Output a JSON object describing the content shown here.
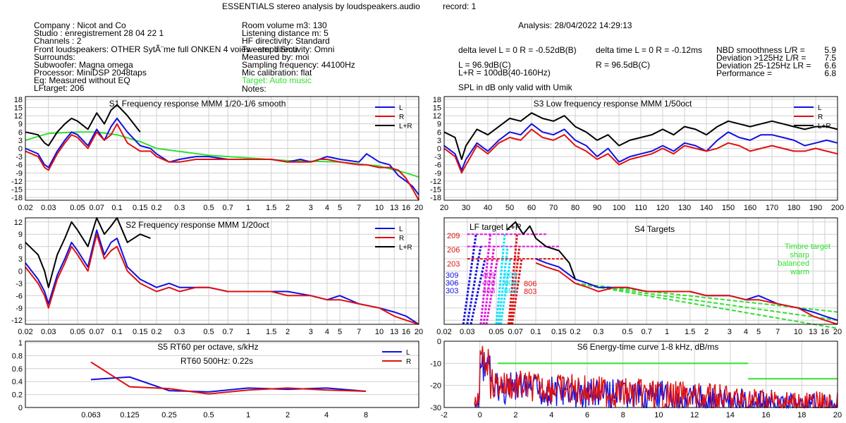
{
  "header": {
    "title": "ESSENTIALS stereo analysis by loudspeakers.audio",
    "record": "record: 1",
    "analysis": "Analysis: 28/04/2022 14:29:13"
  },
  "info_left": [
    "Company : Nicot and Co",
    "Studio : enregistrement 28 04 22 1",
    "Channels : 2",
    "Front loudspeakers: OTHER SytÃ¨me full ONKEN 4 voies - ampli Smu",
    "Surrounds:",
    "Subwoofer: Magna omega",
    "Processor: MiniDSP 2048taps",
    "Eq: Measured without EQ",
    "LFtarget: 206"
  ],
  "info_mid": [
    "Room volume m3: 130",
    "Listening distance m: 5",
    "HF directivity: Standard",
    "Tweeter directivity: Omni",
    "Measured by: moi",
    "Sampling frequency: 44100Hz",
    "Mic calibration: flat"
  ],
  "info_mid_target": "Target: Auto music",
  "info_mid_notes": "Notes:",
  "levels": {
    "delta_level": "delta level L = 0  R = -0.52dB(B)",
    "delta_time": "delta time  L = 0  R = -0.12ms",
    "l_spl": "L =     96.9dB(C)",
    "r_spl": "R =     96.5dB(C)",
    "lr_spl": "L+R = 100dB(40-160Hz)",
    "spl_note": "SPL in dB only valid with Umik"
  },
  "metrics": [
    {
      "label": "NBD smoothness L/R =",
      "value": "5.9"
    },
    {
      "label": "Deviation >125Hz L/R =",
      "value": "7.5"
    },
    {
      "label": "Deviation 25-125Hz LR =",
      "value": "6.6"
    },
    {
      "label": "Performance =",
      "value": "6.8"
    }
  ],
  "colors": {
    "L": "#1010e0",
    "R": "#e01010",
    "LR": "#000000",
    "target": "#30e030",
    "grid": "#d0d0d0"
  },
  "chart_data": [
    {
      "id": "S1",
      "type": "line",
      "title": "S1  Frequency response MMM 1/20-1/6 smooth",
      "x_scale": "log",
      "xlim": [
        0.02,
        20
      ],
      "ylim": [
        -19,
        19
      ],
      "x_ticks": [
        "0.02",
        "0.03",
        "0.05",
        "0.07",
        "0.1",
        "0.15",
        "0.2",
        "0.3",
        "0.5",
        "0.7",
        "1",
        "1.5",
        "2",
        "3",
        "4",
        "5",
        "7",
        "10",
        "13",
        "16",
        "20"
      ],
      "y_ticks": [
        "18",
        "15",
        "12",
        "9",
        "6",
        "3",
        "0",
        "-3",
        "-6",
        "-9",
        "-12",
        "-15",
        "-18"
      ],
      "legend": [
        "L",
        "R",
        "L+R"
      ],
      "series": [
        {
          "name": "target",
          "x": [
            0.02,
            0.03,
            0.05,
            0.07,
            0.1,
            0.15,
            0.2,
            0.5,
            1,
            2,
            5,
            10,
            16,
            20
          ],
          "y": [
            3,
            5.5,
            6,
            6,
            5,
            2.5,
            0,
            -2.5,
            -3.5,
            -4.5,
            -5,
            -6.5,
            -9,
            -10.5
          ]
        },
        {
          "name": "L",
          "x": [
            0.02,
            0.025,
            0.028,
            0.03,
            0.035,
            0.04,
            0.045,
            0.05,
            0.06,
            0.07,
            0.08,
            0.09,
            0.1,
            0.12,
            0.15,
            0.18,
            0.2,
            0.25,
            0.3,
            0.4,
            0.5,
            0.7,
            1,
            1.5,
            2,
            2.5,
            3,
            3.5,
            4,
            5,
            7,
            8,
            10,
            12,
            14,
            16,
            18,
            20
          ],
          "y": [
            0,
            -2,
            -6,
            -7,
            -1,
            3,
            6,
            5,
            1,
            7,
            3,
            8,
            11,
            6,
            1,
            0,
            -2,
            -5,
            -4,
            -3,
            -3,
            -4,
            -4,
            -4,
            -5,
            -4,
            -5,
            -4,
            -3,
            -4,
            -5,
            -2,
            -5,
            -6,
            -10,
            -12,
            -14,
            -17
          ]
        },
        {
          "name": "R",
          "x": [
            0.02,
            0.025,
            0.028,
            0.03,
            0.035,
            0.04,
            0.045,
            0.05,
            0.06,
            0.07,
            0.08,
            0.09,
            0.1,
            0.12,
            0.15,
            0.18,
            0.2,
            0.25,
            0.3,
            0.4,
            0.5,
            0.7,
            1,
            1.5,
            2,
            2.5,
            3,
            3.5,
            4,
            5,
            7,
            8,
            10,
            12,
            14,
            16,
            18,
            20
          ],
          "y": [
            -1,
            -3,
            -7,
            -8,
            -2,
            2,
            5,
            4,
            0,
            6,
            3,
            5,
            9,
            2,
            -1,
            -1,
            -3,
            -5,
            -5,
            -4,
            -4,
            -4,
            -4,
            -4,
            -5,
            -5,
            -5,
            -4,
            -4,
            -5,
            -6,
            -6,
            -7,
            -7,
            -8,
            -11,
            -15,
            -19
          ]
        },
        {
          "name": "L+R",
          "x": [
            0.02,
            0.025,
            0.028,
            0.03,
            0.035,
            0.04,
            0.045,
            0.05,
            0.06,
            0.07,
            0.08,
            0.09,
            0.1,
            0.12,
            0.15
          ],
          "y": [
            6,
            5,
            2,
            1,
            6,
            9,
            11,
            10,
            7,
            13,
            9,
            14,
            16,
            12,
            6
          ]
        }
      ]
    },
    {
      "id": "S3",
      "type": "line",
      "title": "S3  Low frequency response MMM 1/50oct",
      "x_scale": "linear",
      "xlim": [
        20,
        200
      ],
      "ylim": [
        -19,
        19
      ],
      "x_ticks": [
        "20",
        "30",
        "40",
        "50",
        "60",
        "70",
        "80",
        "90",
        "100",
        "110",
        "120",
        "130",
        "140",
        "150",
        "160",
        "170",
        "180",
        "190",
        "200"
      ],
      "y_ticks": [
        "18",
        "15",
        "12",
        "9",
        "6",
        "3",
        "0",
        "-3",
        "-6",
        "-9",
        "-12",
        "-15",
        "-18"
      ],
      "legend": [
        "L",
        "R",
        "L+R"
      ],
      "series": [
        {
          "name": "L",
          "x": [
            20,
            25,
            28,
            30,
            35,
            40,
            45,
            50,
            55,
            60,
            65,
            70,
            75,
            80,
            85,
            90,
            95,
            100,
            105,
            110,
            115,
            120,
            125,
            130,
            135,
            140,
            145,
            150,
            155,
            160,
            165,
            170,
            175,
            180,
            185,
            190,
            195,
            200
          ],
          "y": [
            1,
            -2,
            -8,
            -4,
            2,
            -1,
            3,
            6,
            5,
            9,
            6,
            5,
            7,
            3,
            1,
            -3,
            0,
            -5,
            -3,
            -2,
            -1,
            1,
            -1,
            2,
            1,
            -1,
            3,
            6,
            4,
            3,
            5,
            5,
            4,
            3,
            1,
            2,
            3,
            2
          ]
        },
        {
          "name": "R",
          "x": [
            20,
            25,
            28,
            30,
            35,
            40,
            45,
            50,
            55,
            60,
            65,
            70,
            75,
            80,
            85,
            90,
            95,
            100,
            105,
            110,
            115,
            120,
            125,
            130,
            135,
            140,
            145,
            150,
            155,
            160,
            165,
            170,
            175,
            180,
            185,
            190,
            195,
            200
          ],
          "y": [
            0,
            -3,
            -9,
            -6,
            1,
            -2,
            2,
            4,
            3,
            7,
            4,
            3,
            5,
            1,
            -1,
            -4,
            -2,
            -6,
            -4,
            -3,
            -2,
            0,
            -2,
            1,
            0,
            -1,
            0,
            2,
            1,
            -1,
            0,
            1,
            0,
            -1,
            -1,
            0,
            -1,
            -2
          ]
        },
        {
          "name": "L+R",
          "x": [
            20,
            25,
            28,
            30,
            35,
            40,
            45,
            50,
            55,
            60,
            65,
            70,
            75,
            80,
            85,
            90,
            95,
            100,
            105,
            110,
            115,
            120,
            125,
            130,
            135,
            140,
            145,
            150,
            155,
            160,
            165,
            170,
            175,
            180,
            185,
            190,
            195,
            200
          ],
          "y": [
            6,
            4,
            -4,
            1,
            7,
            5,
            8,
            11,
            10,
            13,
            11,
            10,
            12,
            8,
            6,
            3,
            5,
            1,
            3,
            4,
            5,
            7,
            5,
            8,
            7,
            5,
            8,
            10,
            9,
            8,
            9,
            10,
            9,
            8,
            7,
            8,
            8,
            7
          ]
        }
      ]
    },
    {
      "id": "S2",
      "type": "line",
      "title": "S2  Frequency response MMM 1/20oct",
      "x_scale": "log",
      "xlim": [
        0.02,
        20
      ],
      "ylim": [
        -13,
        13
      ],
      "x_ticks": [
        "0.02",
        "0.03",
        "0.05",
        "0.07",
        "0.1",
        "0.15",
        "0.2",
        "0.3",
        "0.5",
        "0.7",
        "1",
        "1.5",
        "2",
        "3",
        "4",
        "5",
        "7",
        "10",
        "13",
        "16",
        "20"
      ],
      "y_ticks": [
        "12",
        "9",
        "6",
        "3",
        "0",
        "-3",
        "-6",
        "-9",
        "-12"
      ],
      "legend": [
        "L",
        "R",
        "L+R"
      ],
      "series": [
        {
          "name": "L",
          "x": [
            0.02,
            0.025,
            0.028,
            0.03,
            0.035,
            0.04,
            0.045,
            0.05,
            0.06,
            0.07,
            0.08,
            0.09,
            0.1,
            0.12,
            0.15,
            0.2,
            0.25,
            0.3,
            0.4,
            0.5,
            0.7,
            1,
            1.5,
            2,
            3,
            4,
            5,
            7,
            10,
            13,
            16,
            20
          ],
          "y": [
            2,
            -2,
            -5,
            -8,
            -1,
            3,
            7,
            5,
            1,
            10,
            4,
            7,
            8,
            1,
            -2,
            -4,
            -3,
            -4,
            -4,
            -4,
            -5,
            -5,
            -5,
            -5,
            -6,
            -7,
            -6,
            -8,
            -9,
            -10,
            -11,
            -13
          ]
        },
        {
          "name": "R",
          "x": [
            0.02,
            0.025,
            0.028,
            0.03,
            0.035,
            0.04,
            0.045,
            0.05,
            0.06,
            0.07,
            0.08,
            0.09,
            0.1,
            0.12,
            0.15,
            0.2,
            0.25,
            0.3,
            0.4,
            0.5,
            0.7,
            1,
            1.5,
            2,
            3,
            4,
            5,
            7,
            10,
            13,
            16,
            20
          ],
          "y": [
            1,
            -3,
            -6,
            -9,
            -2,
            2,
            6,
            4,
            0,
            9,
            3,
            5,
            6,
            0,
            -3,
            -5,
            -4,
            -5,
            -4,
            -4,
            -5,
            -5,
            -5,
            -6,
            -6,
            -7,
            -7,
            -8,
            -9,
            -11,
            -12,
            -13
          ]
        },
        {
          "name": "L+R",
          "x": [
            0.02,
            0.025,
            0.028,
            0.03,
            0.035,
            0.04,
            0.045,
            0.05,
            0.06,
            0.07,
            0.08,
            0.09,
            0.1,
            0.12,
            0.15,
            0.18
          ],
          "y": [
            7,
            4,
            0,
            -4,
            4,
            8,
            12,
            10,
            6,
            13,
            9,
            11,
            13,
            7,
            9,
            8
          ]
        }
      ]
    },
    {
      "id": "S4",
      "type": "line",
      "title": "S4 Targets",
      "x_scale": "log",
      "xlim": [
        0.02,
        20
      ],
      "ylim": [
        -13,
        13
      ],
      "x_ticks": [
        "0.02",
        "0.03",
        "0.05",
        "0.07",
        "0.1",
        "0.15",
        "0.2",
        "0.3",
        "0.5",
        "0.7",
        "1",
        "1.5",
        "2",
        "3",
        "4",
        "5",
        "7",
        "10",
        "13",
        "16",
        "20"
      ],
      "annotations": {
        "lf_target": "LF target  L+R",
        "timbre": [
          "Timbre target",
          "sharp",
          "balanced",
          "warm"
        ],
        "lf_codes_red": [
          "209",
          "206",
          "203"
        ],
        "lf_codes_blue": [
          "309",
          "306",
          "303"
        ],
        "lf_codes_mag": [
          "409",
          "406",
          "403"
        ],
        "lf_codes_cyan": [
          "609",
          "606",
          "603"
        ],
        "lf_codes_red2": [
          "806",
          "803"
        ]
      },
      "series": [
        {
          "name": "L",
          "x": [
            0.1,
            0.12,
            0.15,
            0.2,
            0.25,
            0.3,
            0.4,
            0.5,
            0.7,
            1,
            1.5,
            2,
            3,
            4,
            5,
            7,
            10,
            13,
            16,
            20
          ],
          "y": [
            3,
            2,
            1,
            -2,
            -3,
            -4,
            -4,
            -4,
            -5,
            -5,
            -5,
            -6,
            -6,
            -7,
            -6,
            -8,
            -9,
            -10,
            -11,
            -12
          ]
        },
        {
          "name": "R",
          "x": [
            0.1,
            0.12,
            0.15,
            0.2,
            0.25,
            0.3,
            0.4,
            0.5,
            0.7,
            1,
            1.5,
            2,
            3,
            4,
            5,
            7,
            10,
            13,
            16,
            20
          ],
          "y": [
            2,
            1,
            0,
            -3,
            -4,
            -5,
            -4,
            -4,
            -5,
            -5,
            -5,
            -6,
            -6,
            -7,
            -7,
            -8,
            -9,
            -11,
            -12,
            -13
          ]
        },
        {
          "name": "L+R",
          "x": [
            0.06,
            0.07,
            0.08,
            0.09,
            0.1,
            0.12,
            0.15,
            0.18,
            0.2
          ],
          "y": [
            10,
            12,
            9,
            11,
            8,
            6,
            5,
            2,
            -2
          ]
        }
      ]
    },
    {
      "id": "S5",
      "type": "line",
      "title": "S5  RT60 per octave, s/kHz",
      "annotation": "RT60 500Hz: 0.22s",
      "x_ticks": [
        "0.063",
        "0.125",
        "0.25",
        "0.5",
        "1",
        "2",
        "4",
        "8"
      ],
      "y_ticks": [
        "1",
        "0.8",
        "0.6",
        "0.4",
        "0.2",
        "0"
      ],
      "ylim": [
        0,
        1
      ],
      "legend": [
        "L",
        "R"
      ],
      "series": [
        {
          "name": "L",
          "values": [
            0.43,
            0.47,
            0.26,
            0.24,
            0.3,
            0.28,
            0.3,
            0.25
          ]
        },
        {
          "name": "R",
          "values": [
            0.7,
            0.32,
            0.29,
            0.21,
            0.27,
            0.3,
            0.27,
            0.25
          ]
        }
      ]
    },
    {
      "id": "S6",
      "type": "line",
      "title": "S6  Energy-time curve 1-8 kHz, dB/ms",
      "xlim": [
        -2,
        20
      ],
      "ylim": [
        -30,
        0
      ],
      "x_ticks": [
        "-2",
        "0",
        "2",
        "4",
        "6",
        "8",
        "10",
        "12",
        "14",
        "16",
        "18",
        "20"
      ],
      "y_ticks": [
        "0",
        "-10",
        "-20",
        "-30"
      ],
      "target_segments": [
        {
          "x": [
            1,
            15
          ],
          "y": -10
        },
        {
          "x": [
            15,
            20
          ],
          "y": -17
        }
      ]
    }
  ]
}
